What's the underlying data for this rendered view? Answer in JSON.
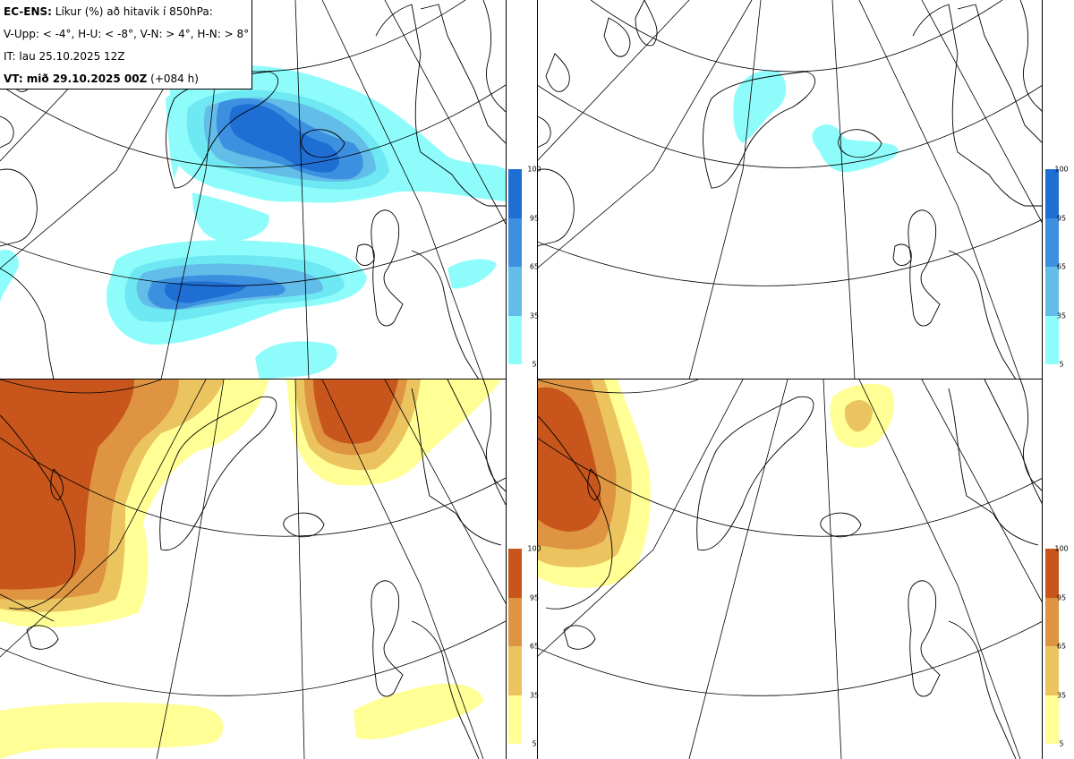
{
  "header": {
    "model": "EC-ENS:",
    "description": " Líkur (%) að hitavik í 850hPa:",
    "thresholds": "V-Upp: < -4°, H-U: < -8°, V-N: > 4°, H-N: > 8°",
    "initial_time": "IT: lau 25.10.2025 12Z",
    "valid_label": "VT: mið 29.10.2025 00Z",
    "valid_lead": " (+084 h)"
  },
  "colorbar_cold": {
    "labels": [
      "100",
      "95",
      "65",
      "35",
      "5"
    ],
    "colors": [
      "#1f6ed4",
      "#3d8fe0",
      "#63bde8",
      "#6ee8f2",
      "#8ffcfc"
    ]
  },
  "colorbar_warm": {
    "labels": [
      "100",
      "95",
      "65",
      "35",
      "5"
    ],
    "colors": [
      "#c8561c",
      "#de9440",
      "#ebc460",
      "#f8f070",
      "#ffff96"
    ]
  },
  "panels": [
    {
      "name": "upper-left-cold-4",
      "scheme": "cold"
    },
    {
      "name": "upper-right-cold-8",
      "scheme": "cold"
    },
    {
      "name": "lower-left-warm-4",
      "scheme": "warm"
    },
    {
      "name": "lower-right-warm-8",
      "scheme": "warm"
    }
  ]
}
